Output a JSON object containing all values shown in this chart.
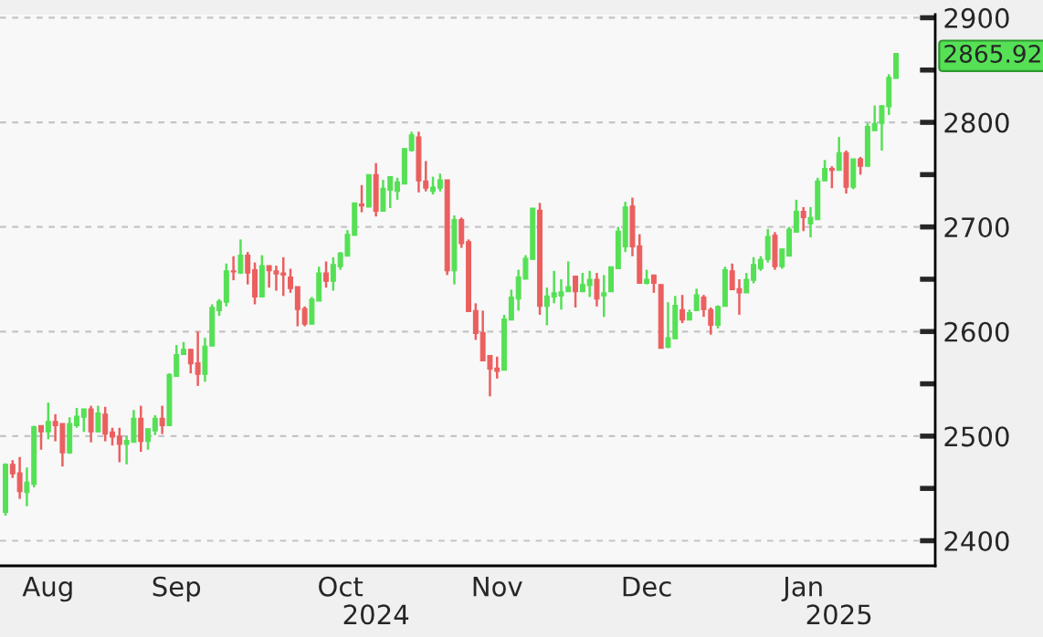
{
  "chart_data": {
    "type": "candlestick",
    "categories": [
      null,
      null,
      null,
      null,
      null,
      null,
      "Aug",
      null,
      null,
      null,
      null,
      null,
      null,
      null,
      null,
      null,
      null,
      null,
      null,
      null,
      null,
      null,
      null,
      null,
      "Sep",
      null,
      null,
      null,
      null,
      null,
      null,
      null,
      null,
      null,
      null,
      null,
      null,
      null,
      null,
      null,
      null,
      null,
      null,
      null,
      null,
      null,
      null,
      "Oct",
      null,
      null,
      null,
      null,
      null,
      null,
      null,
      null,
      null,
      null,
      null,
      null,
      null,
      null,
      null,
      null,
      null,
      null,
      null,
      null,
      null,
      "Nov",
      null,
      null,
      null,
      null,
      null,
      null,
      null,
      null,
      null,
      null,
      null,
      null,
      null,
      null,
      null,
      null,
      null,
      null,
      null,
      null,
      "Dec",
      null,
      null,
      null,
      null,
      null,
      null,
      null,
      null,
      null,
      null,
      null,
      null,
      null,
      null,
      null,
      null,
      null,
      null,
      null,
      null,
      null,
      "Jan",
      null,
      null,
      null,
      null,
      null,
      null,
      null,
      null,
      null,
      null,
      null,
      null,
      null
    ],
    "ohlc": [
      [
        2427,
        2474,
        2424,
        2473
      ],
      [
        2473,
        2477,
        2460,
        2464
      ],
      [
        2465,
        2480,
        2440,
        2447
      ],
      [
        2446,
        2470,
        2433,
        2456
      ],
      [
        2454,
        2510,
        2451,
        2509
      ],
      [
        2510,
        2510,
        2487,
        2504
      ],
      [
        2504,
        2532,
        2497,
        2514
      ],
      [
        2514,
        2521,
        2495,
        2510
      ],
      [
        2512,
        2512,
        2471,
        2484
      ],
      [
        2484,
        2518,
        2483,
        2512
      ],
      [
        2510,
        2527,
        2508,
        2519
      ],
      [
        2518,
        2526,
        2504,
        2526
      ],
      [
        2526,
        2529,
        2494,
        2504
      ],
      [
        2504,
        2529,
        2504,
        2522
      ],
      [
        2521,
        2528,
        2495,
        2502
      ],
      [
        2504,
        2508,
        2491,
        2499
      ],
      [
        2500,
        2508,
        2475,
        2492
      ],
      [
        2492,
        2500,
        2473,
        2496
      ],
      [
        2494,
        2525,
        2494,
        2517
      ],
      [
        2517,
        2529,
        2485,
        2495
      ],
      [
        2495,
        2507,
        2487,
        2507
      ],
      [
        2505,
        2520,
        2501,
        2517
      ],
      [
        2517,
        2529,
        2502,
        2510
      ],
      [
        2510,
        2560,
        2510,
        2559
      ],
      [
        2557,
        2587,
        2557,
        2578
      ],
      [
        2578,
        2590,
        2578,
        2583
      ],
      [
        2583,
        2583,
        2560,
        2569
      ],
      [
        2570,
        2600,
        2548,
        2559
      ],
      [
        2559,
        2594,
        2552,
        2586
      ],
      [
        2586,
        2626,
        2586,
        2623
      ],
      [
        2620,
        2631,
        2615,
        2629
      ],
      [
        2628,
        2665,
        2624,
        2658
      ],
      [
        2658,
        2672,
        2649,
        2657
      ],
      [
        2656,
        2688,
        2655,
        2673
      ],
      [
        2673,
        2676,
        2645,
        2656
      ],
      [
        2659,
        2666,
        2626,
        2633
      ],
      [
        2633,
        2673,
        2633,
        2663
      ],
      [
        2663,
        2663,
        2642,
        2658
      ],
      [
        2658,
        2663,
        2639,
        2655
      ],
      [
        2656,
        2671,
        2634,
        2654
      ],
      [
        2652,
        2660,
        2637,
        2641
      ],
      [
        2643,
        2643,
        2605,
        2621
      ],
      [
        2622,
        2624,
        2605,
        2607
      ],
      [
        2607,
        2633,
        2607,
        2631
      ],
      [
        2629,
        2662,
        2629,
        2656
      ],
      [
        2656,
        2667,
        2642,
        2648
      ],
      [
        2648,
        2671,
        2639,
        2664
      ],
      [
        2662,
        2676,
        2659,
        2675
      ],
      [
        2672,
        2697,
        2672,
        2693
      ],
      [
        2692,
        2723,
        2692,
        2723
      ],
      [
        2722,
        2740,
        2714,
        2720
      ],
      [
        2719,
        2750,
        2719,
        2750
      ],
      [
        2750,
        2761,
        2710,
        2715
      ],
      [
        2715,
        2745,
        2715,
        2737
      ],
      [
        2735,
        2748,
        2718,
        2748
      ],
      [
        2734,
        2747,
        2726,
        2743
      ],
      [
        2741,
        2775,
        2741,
        2775
      ],
      [
        2773,
        2791,
        2772,
        2788
      ],
      [
        2786,
        2791,
        2733,
        2744
      ],
      [
        2744,
        2763,
        2734,
        2737
      ],
      [
        2734,
        2748,
        2731,
        2738
      ],
      [
        2737,
        2751,
        2734,
        2745
      ],
      [
        2745,
        2745,
        2654,
        2658
      ],
      [
        2658,
        2711,
        2645,
        2707
      ],
      [
        2707,
        2709,
        2680,
        2684
      ],
      [
        2686,
        2688,
        2619,
        2619
      ],
      [
        2620,
        2627,
        2592,
        2598
      ],
      [
        2599,
        2620,
        2572,
        2572
      ],
      [
        2577,
        2577,
        2538,
        2564
      ],
      [
        2565,
        2576,
        2555,
        2562
      ],
      [
        2563,
        2616,
        2563,
        2612
      ],
      [
        2611,
        2640,
        2611,
        2633
      ],
      [
        2631,
        2659,
        2620,
        2652
      ],
      [
        2650,
        2673,
        2650,
        2670
      ],
      [
        2669,
        2718,
        2669,
        2718
      ],
      [
        2716,
        2723,
        2616,
        2624
      ],
      [
        2624,
        2642,
        2606,
        2634
      ],
      [
        2633,
        2658,
        2627,
        2637
      ],
      [
        2634,
        2650,
        2621,
        2638
      ],
      [
        2638,
        2667,
        2638,
        2643
      ],
      [
        2653,
        2653,
        2623,
        2638
      ],
      [
        2638,
        2656,
        2638,
        2645
      ],
      [
        2644,
        2658,
        2633,
        2650
      ],
      [
        2650,
        2656,
        2624,
        2631
      ],
      [
        2634,
        2654,
        2614,
        2637
      ],
      [
        2638,
        2662,
        2638,
        2662
      ],
      [
        2660,
        2700,
        2660,
        2696
      ],
      [
        2681,
        2724,
        2676,
        2719
      ],
      [
        2720,
        2728,
        2672,
        2681
      ],
      [
        2682,
        2693,
        2646,
        2646
      ],
      [
        2646,
        2659,
        2645,
        2650
      ],
      [
        2654,
        2654,
        2637,
        2646
      ],
      [
        2645,
        2645,
        2584,
        2584
      ],
      [
        2585,
        2628,
        2584,
        2594
      ],
      [
        2593,
        2634,
        2593,
        2625
      ],
      [
        2621,
        2635,
        2608,
        2611
      ],
      [
        2611,
        2621,
        2611,
        2618
      ],
      [
        2620,
        2641,
        2620,
        2635
      ],
      [
        2633,
        2635,
        2614,
        2621
      ],
      [
        2621,
        2623,
        2597,
        2606
      ],
      [
        2606,
        2625,
        2603,
        2624
      ],
      [
        2624,
        2662,
        2624,
        2659
      ],
      [
        2658,
        2665,
        2640,
        2640
      ],
      [
        2641,
        2650,
        2616,
        2637
      ],
      [
        2637,
        2656,
        2637,
        2650
      ],
      [
        2649,
        2671,
        2646,
        2664
      ],
      [
        2660,
        2672,
        2658,
        2669
      ],
      [
        2669,
        2698,
        2666,
        2691
      ],
      [
        2692,
        2695,
        2659,
        2662
      ],
      [
        2662,
        2679,
        2660,
        2679
      ],
      [
        2672,
        2700,
        2672,
        2698
      ],
      [
        2695,
        2726,
        2695,
        2715
      ],
      [
        2715,
        2719,
        2696,
        2709
      ],
      [
        2703,
        2719,
        2690,
        2709
      ],
      [
        2707,
        2747,
        2707,
        2744
      ],
      [
        2744,
        2764,
        2744,
        2756
      ],
      [
        2756,
        2758,
        2737,
        2754
      ],
      [
        2754,
        2786,
        2754,
        2771
      ],
      [
        2771,
        2773,
        2732,
        2738
      ],
      [
        2738,
        2765,
        2736,
        2765
      ],
      [
        2765,
        2767,
        2750,
        2758
      ],
      [
        2758,
        2799,
        2758,
        2796
      ],
      [
        2792,
        2816,
        2792,
        2799
      ],
      [
        2799,
        2816,
        2773,
        2816
      ],
      [
        2815,
        2846,
        2807,
        2843
      ],
      [
        2842,
        2866,
        2842,
        2865.92
      ]
    ],
    "ylim": [
      2376,
      2903
    ],
    "yticks": [
      2400,
      {
        "value": 2450,
        "label": null
      },
      2500,
      {
        "value": 2550,
        "label": null
      },
      2600,
      {
        "value": 2650,
        "label": null
      },
      2700,
      {
        "value": 2750,
        "label": null
      },
      2800,
      {
        "value": 2850,
        "label": null
      },
      {
        "value": 2865.92,
        "label": "2865.92"
      },
      2900
    ],
    "grid": "y",
    "annotations": [
      "2024",
      "2025"
    ]
  }
}
